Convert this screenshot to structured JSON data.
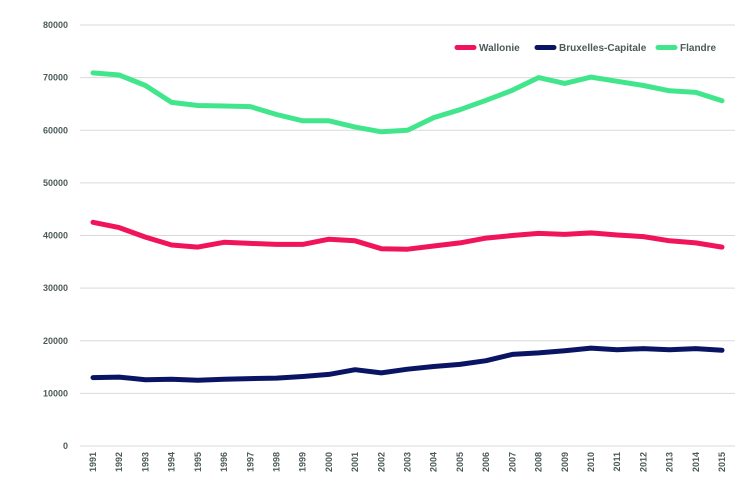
{
  "chart_data": {
    "type": "line",
    "title": "",
    "xlabel": "",
    "ylabel": "",
    "x": [
      "1991",
      "1992",
      "1993",
      "1994",
      "1995",
      "1996",
      "1997",
      "1998",
      "1999",
      "2000",
      "2001",
      "2002",
      "2003",
      "2004",
      "2005",
      "2006",
      "2007",
      "2008",
      "2009",
      "2010",
      "2011",
      "2012",
      "2013",
      "2014",
      "2015"
    ],
    "ylim": [
      0,
      80000
    ],
    "yticks": [
      0,
      10000,
      20000,
      30000,
      40000,
      50000,
      60000,
      70000,
      80000
    ],
    "ytick_labels": [
      "0",
      "10000",
      "20000",
      "30000",
      "40000",
      "50000",
      "60000",
      "70000",
      "80000"
    ],
    "grid": true,
    "legend_position": "top-right",
    "series": [
      {
        "name": "Wallonie",
        "color": "#f0145a",
        "values": [
          42500,
          41500,
          39700,
          38200,
          37800,
          38700,
          38500,
          38300,
          38300,
          39300,
          39000,
          37500,
          37400,
          38000,
          38600,
          39500,
          40000,
          40400,
          40200,
          40500,
          40100,
          39800,
          39000,
          38600,
          37800
        ]
      },
      {
        "name": "Bruxelles-Capitale",
        "color": "#0a1464",
        "values": [
          13000,
          13100,
          12600,
          12700,
          12500,
          12700,
          12800,
          12900,
          13200,
          13600,
          14500,
          13900,
          14600,
          15100,
          15500,
          16200,
          17400,
          17700,
          18100,
          18600,
          18300,
          18500,
          18300,
          18500,
          18200
        ]
      },
      {
        "name": "Flandre",
        "color": "#41e68c",
        "values": [
          70900,
          70500,
          68500,
          65300,
          64700,
          64600,
          64500,
          63000,
          61800,
          61800,
          60600,
          59700,
          60000,
          62400,
          63900,
          65700,
          67600,
          70000,
          68900,
          70100,
          69300,
          68500,
          67500,
          67200,
          65600
        ]
      }
    ]
  }
}
